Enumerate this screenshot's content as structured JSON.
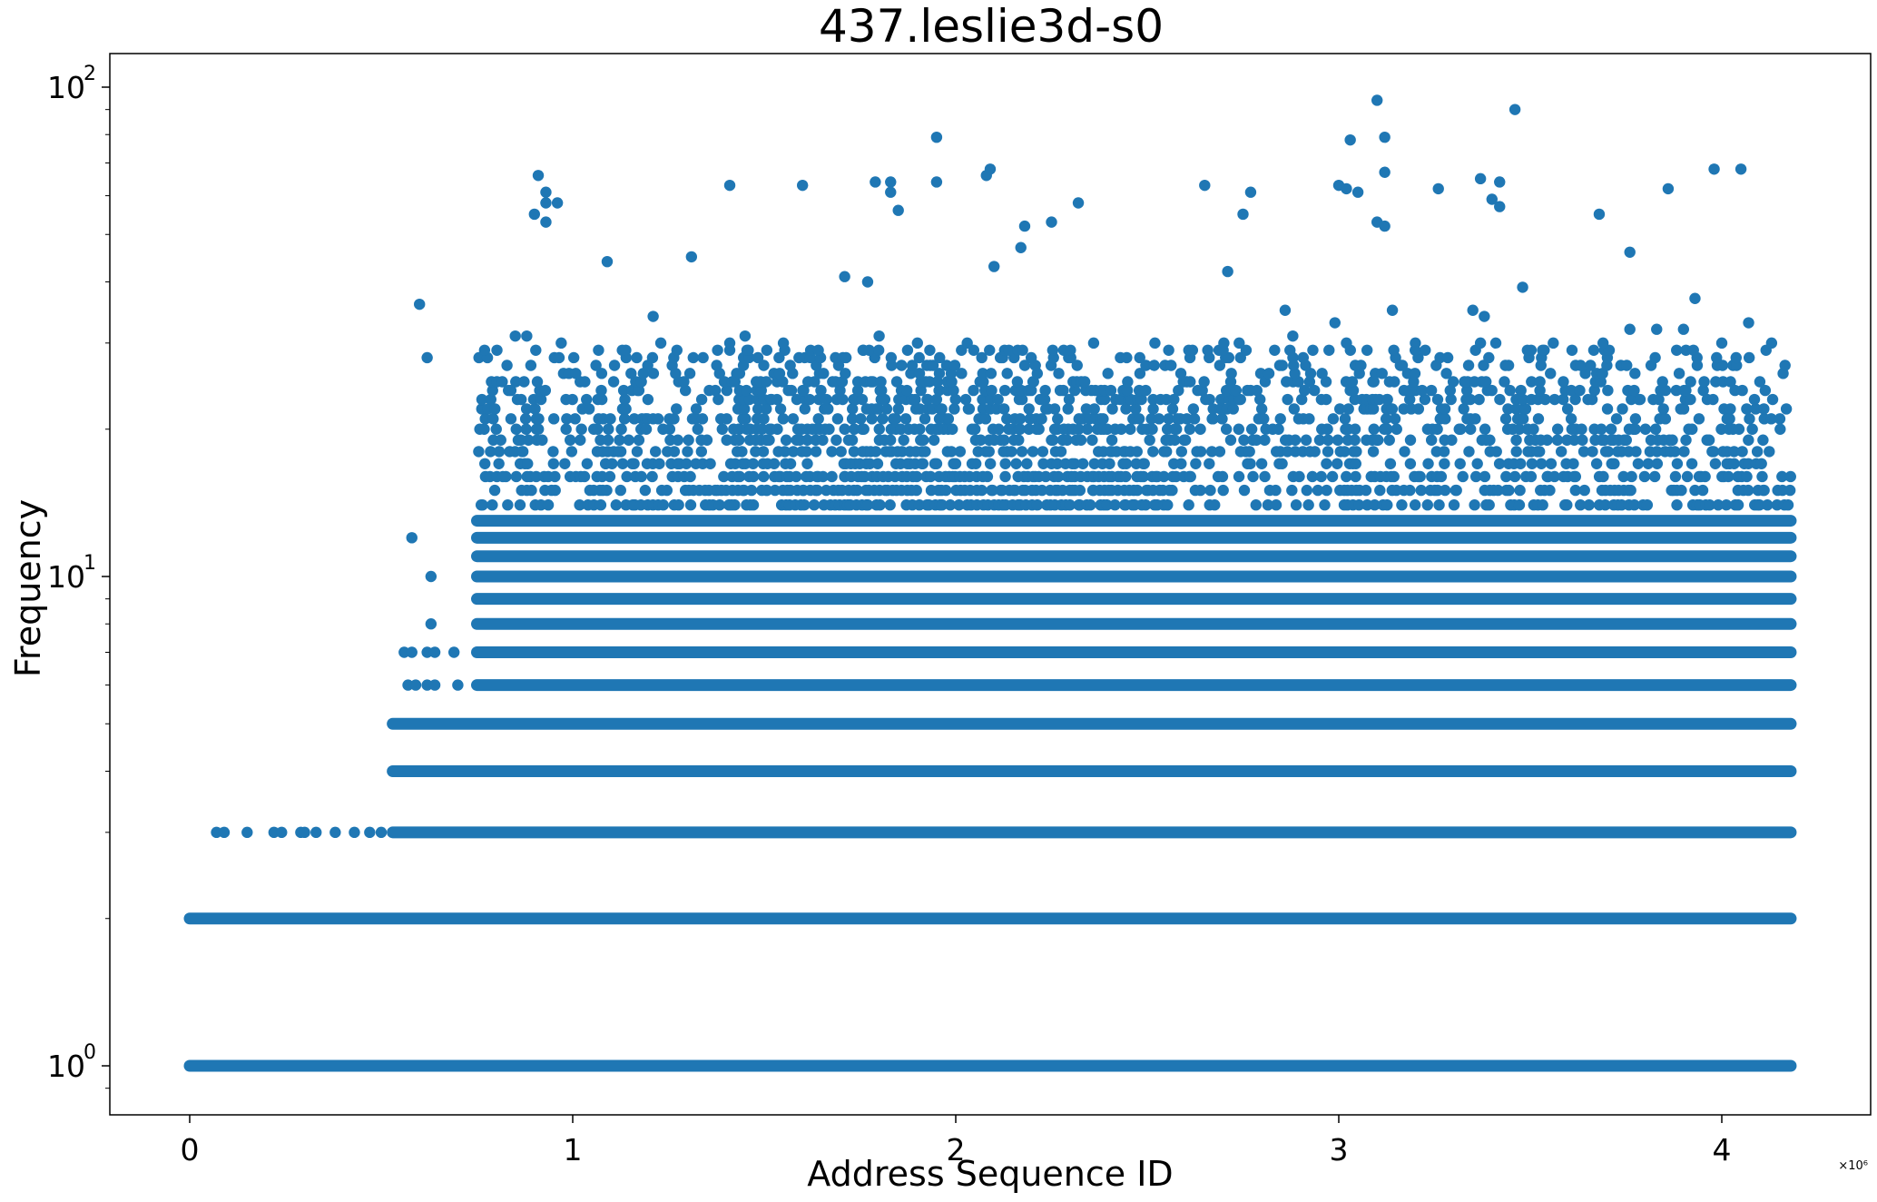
{
  "chart_data": {
    "type": "scatter",
    "title": "437.leslie3d-s0",
    "xlabel": "Address Sequence ID",
    "ylabel": "Frequency",
    "x_scale_label": "×10⁶",
    "xlim": [
      -0.21,
      4.36
    ],
    "ylim": [
      0.8,
      120
    ],
    "yscale": "log",
    "grid": false,
    "marker_color": "#1f77b4",
    "x_ticks": [
      {
        "value": 0,
        "label": "0"
      },
      {
        "value": 1,
        "label": "1"
      },
      {
        "value": 2,
        "label": "2"
      },
      {
        "value": 3,
        "label": "3"
      },
      {
        "value": 4,
        "label": "4"
      }
    ],
    "y_ticks": [
      {
        "value": 1,
        "label": "10",
        "exp": "0"
      },
      {
        "value": 10,
        "label": "10",
        "exp": "1"
      },
      {
        "value": 100,
        "label": "10",
        "exp": "2"
      }
    ],
    "bands": [
      {
        "y": 1,
        "x_start": 0.0,
        "x_end": 4.18
      },
      {
        "y": 2,
        "x_start": 0.0,
        "x_end": 4.18
      },
      {
        "y": 3,
        "x_start": 0.53,
        "x_end": 4.18
      },
      {
        "y": 4,
        "x_start": 0.53,
        "x_end": 4.18
      },
      {
        "y": 5,
        "x_start": 0.53,
        "x_end": 4.18
      },
      {
        "y": 6,
        "x_start": 0.75,
        "x_end": 4.18
      },
      {
        "y": 7,
        "x_start": 0.75,
        "x_end": 4.18
      },
      {
        "y": 8,
        "x_start": 0.75,
        "x_end": 4.18
      },
      {
        "y": 9,
        "x_start": 0.75,
        "x_end": 4.18
      },
      {
        "y": 10,
        "x_start": 0.75,
        "x_end": 4.18
      },
      {
        "y": 11,
        "x_start": 0.75,
        "x_end": 4.18
      },
      {
        "y": 12,
        "x_start": 0.75,
        "x_end": 4.18
      },
      {
        "y": 13,
        "x_start": 0.75,
        "x_end": 4.18
      }
    ],
    "points": [
      [
        0.07,
        3
      ],
      [
        0.09,
        3
      ],
      [
        0.15,
        3
      ],
      [
        0.22,
        3
      ],
      [
        0.24,
        3
      ],
      [
        0.29,
        3
      ],
      [
        0.3,
        3
      ],
      [
        0.33,
        3
      ],
      [
        0.38,
        3
      ],
      [
        0.43,
        3
      ],
      [
        0.47,
        3
      ],
      [
        0.5,
        3
      ],
      [
        0.57,
        6
      ],
      [
        0.59,
        6
      ],
      [
        0.62,
        6
      ],
      [
        0.64,
        6
      ],
      [
        0.7,
        6
      ],
      [
        0.56,
        7
      ],
      [
        0.58,
        7
      ],
      [
        0.62,
        7
      ],
      [
        0.64,
        7
      ],
      [
        0.69,
        7
      ],
      [
        0.63,
        8
      ],
      [
        0.63,
        10
      ],
      [
        0.58,
        12
      ],
      [
        0.6,
        36
      ],
      [
        0.62,
        28
      ],
      [
        0.96,
        58
      ],
      [
        0.9,
        55
      ],
      [
        0.91,
        66
      ],
      [
        0.93,
        61
      ],
      [
        0.93,
        58
      ],
      [
        0.93,
        53
      ],
      [
        1.09,
        44
      ],
      [
        1.21,
        34
      ],
      [
        1.31,
        45
      ],
      [
        1.41,
        63
      ],
      [
        1.6,
        63
      ],
      [
        1.71,
        41
      ],
      [
        1.77,
        40
      ],
      [
        1.79,
        64
      ],
      [
        1.83,
        64
      ],
      [
        1.83,
        61
      ],
      [
        1.85,
        56
      ],
      [
        1.95,
        79
      ],
      [
        1.95,
        64
      ],
      [
        2.08,
        66
      ],
      [
        2.09,
        68
      ],
      [
        2.1,
        43
      ],
      [
        2.17,
        47
      ],
      [
        2.18,
        52
      ],
      [
        2.25,
        53
      ],
      [
        2.32,
        58
      ],
      [
        2.65,
        63
      ],
      [
        2.71,
        42
      ],
      [
        2.75,
        55
      ],
      [
        2.77,
        61
      ],
      [
        2.86,
        35
      ],
      [
        2.99,
        33
      ],
      [
        3.0,
        63
      ],
      [
        3.02,
        62
      ],
      [
        3.03,
        78
      ],
      [
        3.05,
        61
      ],
      [
        3.1,
        53
      ],
      [
        3.1,
        94
      ],
      [
        3.12,
        79
      ],
      [
        3.12,
        67
      ],
      [
        3.12,
        52
      ],
      [
        3.14,
        35
      ],
      [
        3.26,
        62
      ],
      [
        3.35,
        35
      ],
      [
        3.37,
        65
      ],
      [
        3.38,
        34
      ],
      [
        3.4,
        59
      ],
      [
        3.42,
        64
      ],
      [
        3.42,
        57
      ],
      [
        3.46,
        90
      ],
      [
        3.48,
        39
      ],
      [
        3.68,
        55
      ],
      [
        3.76,
        46
      ],
      [
        3.86,
        62
      ],
      [
        3.93,
        37
      ],
      [
        3.98,
        68
      ],
      [
        4.05,
        68
      ],
      [
        4.07,
        33
      ],
      [
        0.85,
        31
      ],
      [
        0.88,
        31
      ],
      [
        0.97,
        30
      ],
      [
        1.23,
        30
      ],
      [
        1.41,
        30
      ],
      [
        1.45,
        31
      ],
      [
        1.55,
        30
      ],
      [
        1.8,
        31
      ],
      [
        1.9,
        30
      ],
      [
        2.03,
        30
      ],
      [
        2.36,
        30
      ],
      [
        2.52,
        30
      ],
      [
        2.7,
        30
      ],
      [
        2.74,
        30
      ],
      [
        2.88,
        31
      ],
      [
        3.02,
        30
      ],
      [
        3.2,
        30
      ],
      [
        3.37,
        30
      ],
      [
        3.41,
        30
      ],
      [
        3.56,
        30
      ],
      [
        3.69,
        30
      ],
      [
        3.76,
        32
      ],
      [
        3.83,
        32
      ],
      [
        3.9,
        32
      ],
      [
        4.0,
        30
      ],
      [
        4.13,
        30
      ]
    ],
    "scatter_zone": {
      "x_start": 0.75,
      "x_end": 4.18,
      "levels": [
        14,
        15,
        16,
        17,
        18,
        19,
        20,
        21,
        22,
        23,
        24,
        25,
        26,
        27,
        28,
        29
      ]
    }
  }
}
